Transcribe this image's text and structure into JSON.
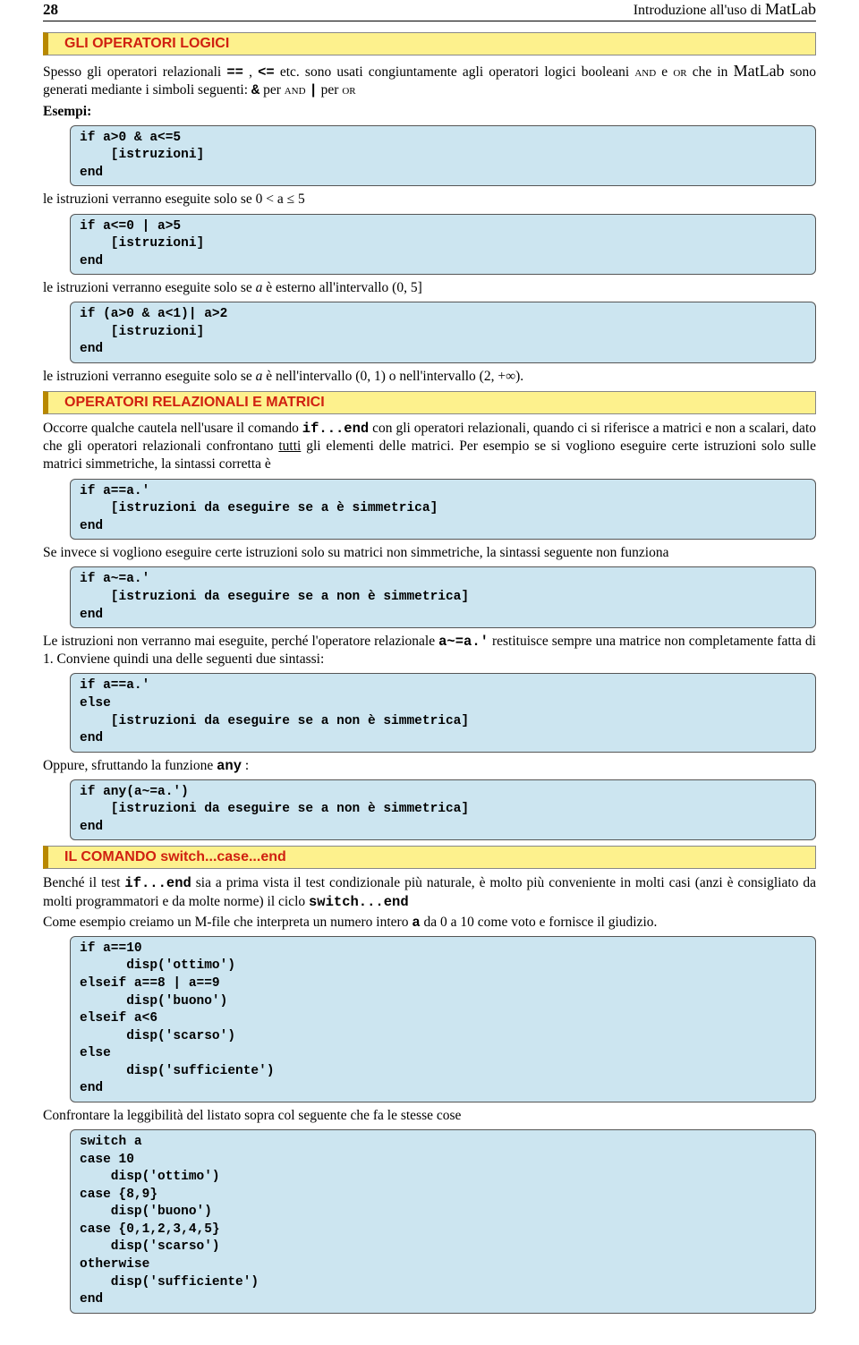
{
  "header": {
    "page_number": "28",
    "title_prefix": "Introduzione all'uso di ",
    "title_matlab": "MatLab"
  },
  "section1": {
    "heading": "GLI OPERATORI LOGICI",
    "p1a": "Spesso gli operatori relazionali ",
    "p1_op1": "==",
    "p1b": " , ",
    "p1_op2": "<=",
    "p1c": " etc. sono usati congiuntamente agli operatori logici booleani ",
    "p1_and": "and",
    "p1d": " e ",
    "p1_or": "or",
    "p1e": " che in ",
    "p1_matlab": "MatLab",
    "p1f": " sono generati mediante i simboli seguenti:      ",
    "p1_amp": "&",
    "p1g": " per ",
    "p1_and2": "and",
    "p1h": "      ",
    "p1_pipe": "|",
    "p1i": " per ",
    "p1_or2": "or",
    "esempi_label": "Esempi:",
    "code1": "if a>0 & a<=5\n    [istruzioni]\nend",
    "p2": "le istruzioni verranno eseguite solo se 0 < a ≤ 5",
    "code2": "if a<=0 | a>5\n    [istruzioni]\nend",
    "p3a": "le istruzioni verranno eseguite solo se ",
    "p3b": "a",
    "p3c": " è esterno all'intervallo (0, 5]",
    "code3": "if (a>0 & a<1)| a>2\n    [istruzioni]\nend",
    "p4a": "le istruzioni verranno eseguite solo se ",
    "p4b": "a",
    "p4c": " è nell'intervallo (0, 1) o nell'intervallo (2, +∞)."
  },
  "section2": {
    "heading": "OPERATORI RELAZIONALI E MATRICI",
    "p1a": "Occorre qualche cautela nell'usare il comando ",
    "p1_cmd": "if...end",
    "p1b": " con gli operatori relazionali, quando ci si riferisce a matrici e non a scalari, dato che gli operatori relazionali confrontano ",
    "p1_tutti": "tutti",
    "p1c": " gli elementi delle matrici. Per esempio se si vogliono eseguire certe istruzioni solo sulle matrici simmetriche, la sintassi corretta è",
    "code1": "if a==a.'\n    [istruzioni da eseguire se a è simmetrica]\nend",
    "p2": "Se invece si vogliono eseguire certe istruzioni solo su matrici non simmetriche, la sintassi seguente non funziona",
    "code2": "if a~=a.'\n    [istruzioni da eseguire se a non è simmetrica]\nend",
    "p3a": "Le istruzioni non verranno mai eseguite, perché l'operatore relazionale ",
    "p3_op": "a~=a.'",
    "p3b": " restituisce sempre una matrice non completamente fatta di 1. Conviene quindi una delle seguenti due sintassi:",
    "code3": "if a==a.'\nelse\n    [istruzioni da eseguire se a non è simmetrica]\nend",
    "p4a": "Oppure, sfruttando la funzione ",
    "p4_any": "any",
    "p4b": " :",
    "code4": "if any(a~=a.')\n    [istruzioni da eseguire se a non è simmetrica]\nend"
  },
  "section3": {
    "heading": "IL COMANDO switch...case...end",
    "p1a": "Benché il test ",
    "p1_cmd1": "if...end",
    "p1b": " sia a prima vista il test condizionale più naturale, è molto più conveniente in molti casi (anzi è consigliato da molti programmatori e da molte norme) il ciclo ",
    "p1_cmd2": "switch...end",
    "p2a": "Come esempio creiamo un M-file che interpreta un numero intero ",
    "p2_a": "a",
    "p2b": " da 0 a 10 come voto e fornisce il giudizio.",
    "code1": "if a==10\n      disp('ottimo')\nelseif a==8 | a==9\n      disp('buono')\nelseif a<6\n      disp('scarso')\nelse\n      disp('sufficiente')\nend",
    "p3": "Confrontare la leggibilità del listato sopra col seguente che fa le stesse cose",
    "code2": "switch a\ncase 10\n    disp('ottimo')\ncase {8,9}\n    disp('buono')\ncase {0,1,2,3,4,5}\n    disp('scarso')\notherwise\n    disp('sufficiente')\nend"
  }
}
